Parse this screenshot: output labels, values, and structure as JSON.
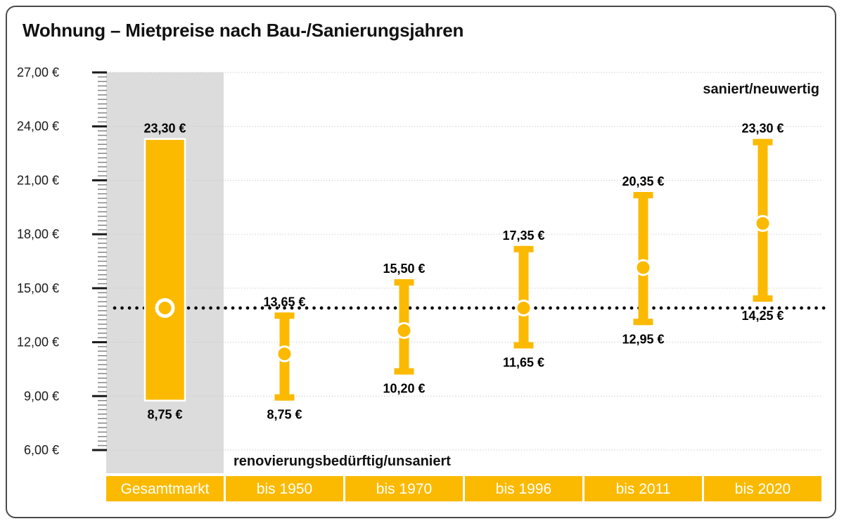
{
  "title": "Wohnung – Mietpreise nach Bau-/Sanierungsjahren",
  "chart_data": {
    "type": "range-bar",
    "title": "Wohnung – Mietpreise nach Bau-/Sanierungsjahren",
    "ylim": [
      6,
      27
    ],
    "major_tick_step": 3,
    "minor_tick_step": 0.25,
    "ytick_values": [
      27,
      24,
      21,
      18,
      15,
      12,
      9,
      6
    ],
    "ytick_labels": [
      "27,00 €",
      "24,00 €",
      "21,00 €",
      "18,00 €",
      "15,00 €",
      "12,00 €",
      "9,00 €",
      "6,00 €"
    ],
    "grid": "dotted horizontal lines at major ticks",
    "legend_position": "none",
    "reference_line": {
      "value": 13.9,
      "style": "dotted-black"
    },
    "categories": [
      "Gesamtmarkt",
      "bis 1950",
      "bis 1970",
      "bis 1996",
      "bis 2011",
      "bis 2020"
    ],
    "columns": [
      {
        "category": "Gesamtmarkt",
        "min": 8.75,
        "max": 23.3,
        "min_label": "8,75 €",
        "max_label": "23,30 €",
        "marker": 13.9,
        "marker_style": "white-ring",
        "shape": "wide-bar",
        "highlight_band": true
      },
      {
        "category": "bis 1950",
        "min": 8.75,
        "max": 13.65,
        "min_label": "8,75 €",
        "max_label": "13,65 €",
        "marker": 11.35,
        "marker_style": "dot",
        "shape": "error-bar",
        "highlight_band": false
      },
      {
        "category": "bis 1970",
        "min": 10.2,
        "max": 15.5,
        "min_label": "10,20 €",
        "max_label": "15,50 €",
        "marker": 12.65,
        "marker_style": "dot",
        "shape": "error-bar",
        "highlight_band": false
      },
      {
        "category": "bis 1996",
        "min": 11.65,
        "max": 17.35,
        "min_label": "11,65 €",
        "max_label": "17,35 €",
        "marker": 13.9,
        "marker_style": "dot",
        "shape": "error-bar",
        "highlight_band": false
      },
      {
        "category": "bis 2011",
        "min": 12.95,
        "max": 20.35,
        "min_label": "12,95 €",
        "max_label": "20,35 €",
        "marker": 16.15,
        "marker_style": "dot",
        "shape": "error-bar",
        "highlight_band": false
      },
      {
        "category": "bis 2020",
        "min": 14.25,
        "max": 23.3,
        "min_label": "14,25 €",
        "max_label": "23,30 €",
        "marker": 18.6,
        "marker_style": "dot",
        "shape": "error-bar",
        "highlight_band": false
      }
    ],
    "annotations": [
      {
        "text": "saniert/neuwertig",
        "position": "top-right"
      },
      {
        "text": "renovierungsbedürftig/unsaniert",
        "position": "bottom-left"
      }
    ]
  },
  "colors": {
    "accent_orange": "#FBBA00",
    "band_gray": "#DCDCDC",
    "grid_dotted": "#C6C6C6",
    "minor_tick": "#858585",
    "major_tick": "#1A1A1A",
    "reference_line": "#000000",
    "value_label_text": "#000000",
    "axis_label_text": "#1A1A1A",
    "category_text": "#FFFFFF",
    "frame_border": "#4A4A4A",
    "background": "#FFFFFF",
    "marker_outline": "#FFFFFF"
  }
}
